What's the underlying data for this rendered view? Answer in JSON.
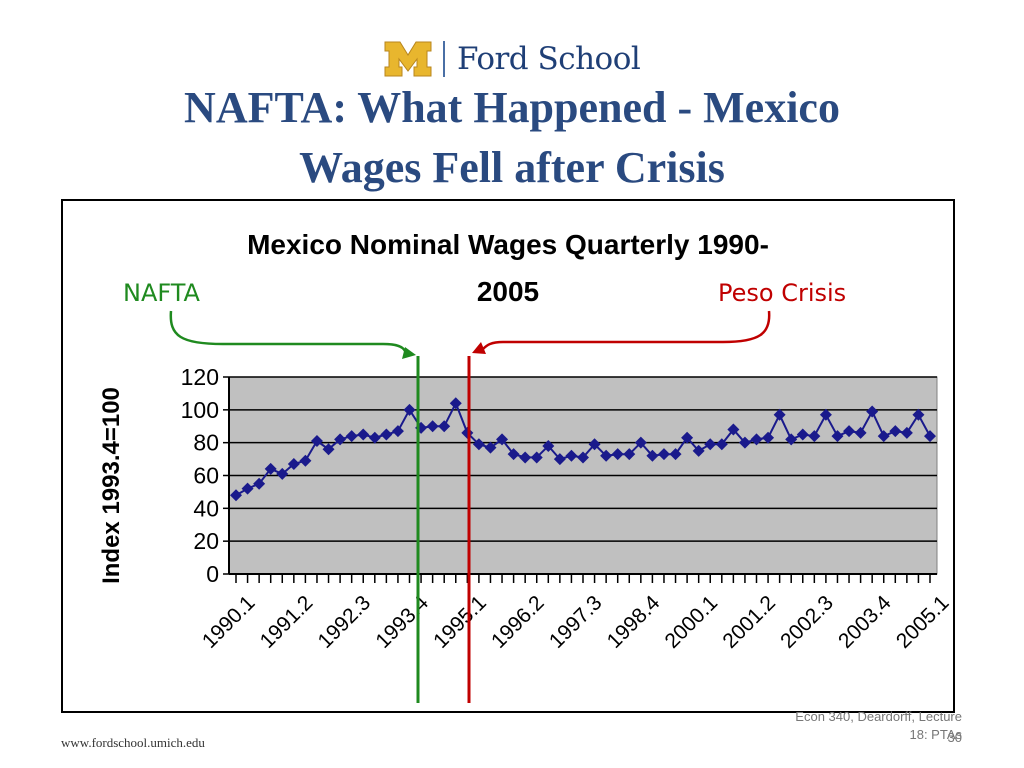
{
  "header": {
    "logo_text": "Ford School"
  },
  "slide": {
    "title_line1": "NAFTA: What Happened - Mexico",
    "title_line2": "Wages Fell after Crisis"
  },
  "annotations": {
    "nafta_label": "NAFTA",
    "nafta_color": "#1f8a1f",
    "peso_label": "Peso Crisis",
    "peso_color": "#c00000"
  },
  "chart_data": {
    "type": "line",
    "title_line1": "Mexico Nominal Wages Quarterly 1990-",
    "title_line2": "2005",
    "ylabel": "Index 1993.4=100",
    "xlabel": "",
    "ylim": [
      0,
      120
    ],
    "yticks": [
      "0",
      "20",
      "40",
      "60",
      "80",
      "100",
      "120"
    ],
    "grid": "horizontal",
    "marker": "diamond",
    "series_color": "#1a1a8c",
    "plot_background": "#c0c0c0",
    "x_tick_labels": [
      "1990.1",
      "1991.2",
      "1992.3",
      "1993.4",
      "1995.1",
      "1996.2",
      "1997.3",
      "1998.4",
      "2000.1",
      "2001.2",
      "2002.3",
      "2003.4",
      "2005.1"
    ],
    "x_tick_label_step": 5,
    "series": [
      {
        "values": [
          48,
          52,
          55,
          64,
          61,
          67,
          69,
          81,
          76,
          82,
          84,
          85,
          83,
          85,
          87,
          100,
          89,
          90,
          90,
          104,
          86,
          79,
          77,
          82,
          73,
          71,
          71,
          78,
          70,
          72,
          71,
          79,
          72,
          73,
          73,
          80,
          72,
          73,
          73,
          83,
          75,
          79,
          79,
          88,
          80,
          82,
          83,
          97,
          82,
          85,
          84,
          97,
          84,
          87,
          86,
          99,
          84,
          87,
          86,
          97,
          84
        ]
      }
    ]
  },
  "footer": {
    "url": "www.fordschool.umich.edu",
    "note_line1": "Econ 340, Deardorff, Lecture",
    "note_line2": "18: PTAs",
    "page_number": "30"
  }
}
